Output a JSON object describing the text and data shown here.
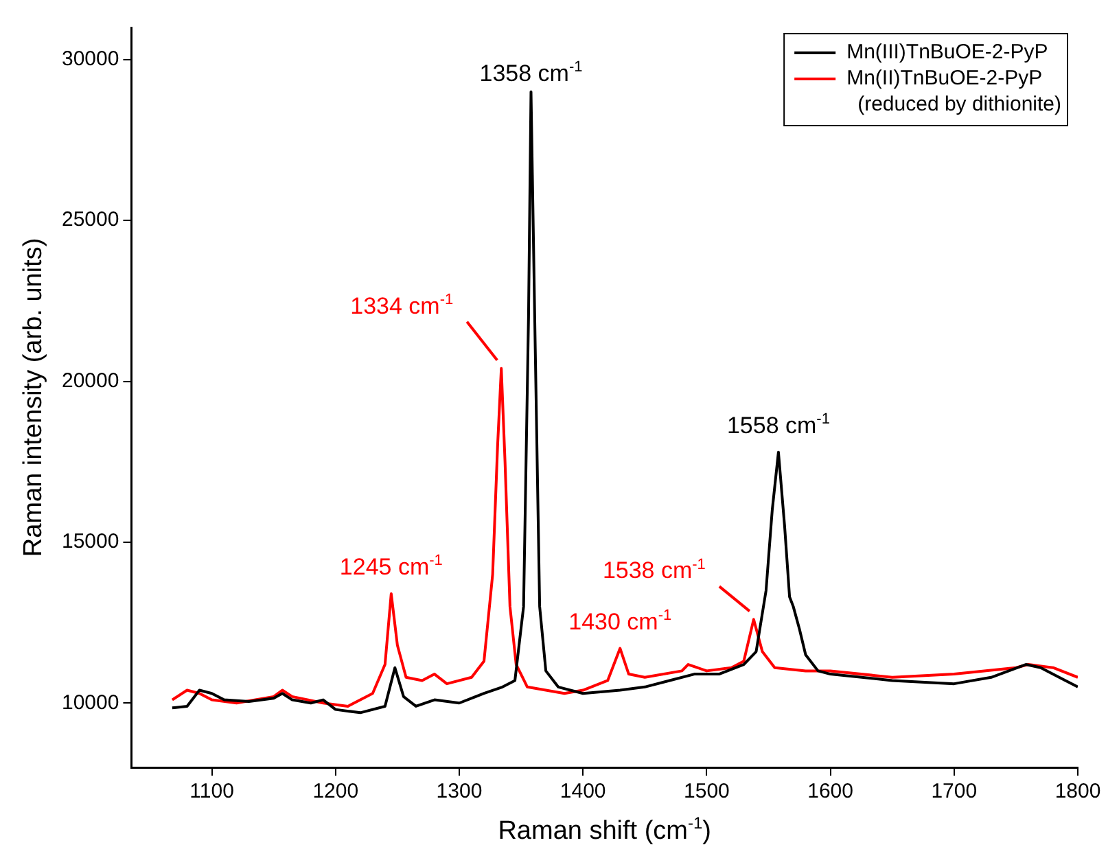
{
  "chart_data": {
    "type": "line",
    "xlabel": "Raman shift (cm$^{-1}$)",
    "ylabel": "Raman intensity (arb. units)",
    "xlim": [
      1035,
      1800
    ],
    "xticks": [
      1100,
      1200,
      1300,
      1400,
      1500,
      1600,
      1700,
      1800
    ],
    "ylim": [
      8000,
      31000
    ],
    "yticks": [
      10000,
      15000,
      20000,
      25000,
      30000
    ],
    "grid": false,
    "legend": "top right",
    "marker": "none",
    "line_style": "solid",
    "series": [
      {
        "name": "Mn(III)TnBuOE-2-PyP",
        "color": "#000000",
        "x": [
          1068,
          1080,
          1090,
          1100,
          1110,
          1130,
          1150,
          1157,
          1165,
          1180,
          1190,
          1200,
          1220,
          1240,
          1248,
          1255,
          1265,
          1280,
          1300,
          1320,
          1335,
          1345,
          1352,
          1356,
          1358,
          1361,
          1365,
          1370,
          1380,
          1400,
          1430,
          1450,
          1470,
          1490,
          1510,
          1530,
          1540,
          1548,
          1553,
          1558,
          1563,
          1567,
          1570,
          1575,
          1580,
          1590,
          1600,
          1650,
          1700,
          1730,
          1758,
          1770,
          1790,
          1800
        ],
        "values": [
          9850,
          9900,
          10400,
          10300,
          10100,
          10050,
          10150,
          10300,
          10100,
          10000,
          10100,
          9800,
          9700,
          9900,
          11100,
          10200,
          9900,
          10100,
          10000,
          10300,
          10500,
          10700,
          13000,
          22000,
          29000,
          22000,
          13000,
          11000,
          10500,
          10300,
          10400,
          10500,
          10700,
          10900,
          10900,
          11200,
          11600,
          13500,
          16000,
          17800,
          15500,
          13300,
          13000,
          12300,
          11500,
          11000,
          10900,
          10700,
          10600,
          10800,
          11200,
          11100,
          10700,
          10500
        ]
      },
      {
        "name": "Mn(II)TnBuOE-2-PyP (reduced by dithionite)",
        "color": "#ff0000",
        "x": [
          1068,
          1080,
          1090,
          1100,
          1120,
          1150,
          1157,
          1165,
          1190,
          1210,
          1230,
          1240,
          1245,
          1250,
          1257,
          1270,
          1280,
          1290,
          1310,
          1320,
          1327,
          1331,
          1334,
          1337,
          1341,
          1346,
          1355,
          1370,
          1385,
          1400,
          1420,
          1430,
          1437,
          1450,
          1480,
          1485,
          1500,
          1520,
          1530,
          1538,
          1545,
          1555,
          1580,
          1600,
          1650,
          1700,
          1750,
          1760,
          1780,
          1800
        ],
        "values": [
          10100,
          10400,
          10300,
          10100,
          10000,
          10200,
          10400,
          10200,
          10000,
          9900,
          10300,
          11200,
          13400,
          11800,
          10800,
          10700,
          10900,
          10600,
          10800,
          11300,
          14000,
          18000,
          20400,
          17500,
          13000,
          11200,
          10500,
          10400,
          10300,
          10400,
          10700,
          11700,
          10900,
          10800,
          11000,
          11200,
          11000,
          11100,
          11300,
          12600,
          11600,
          11100,
          11000,
          11000,
          10800,
          10900,
          11100,
          11200,
          11100,
          10800
        ]
      }
    ],
    "annotations": [
      {
        "text": "1358 cm$^{-1}$",
        "x": 1358,
        "y": 29000
      },
      {
        "text": "1334 cm$^{-1}$",
        "x": 1334,
        "y": 20400
      },
      {
        "text": "1245 cm$^{-1}$",
        "x": 1245,
        "y": 13400
      },
      {
        "text": "1430 cm$^{-1}$",
        "x": 1430,
        "y": 11700
      },
      {
        "text": "1538 cm$^{-1}$",
        "x": 1538,
        "y": 12600
      },
      {
        "text": "1558 cm$^{-1}$",
        "x": 1558,
        "y": 17800
      }
    ]
  }
}
